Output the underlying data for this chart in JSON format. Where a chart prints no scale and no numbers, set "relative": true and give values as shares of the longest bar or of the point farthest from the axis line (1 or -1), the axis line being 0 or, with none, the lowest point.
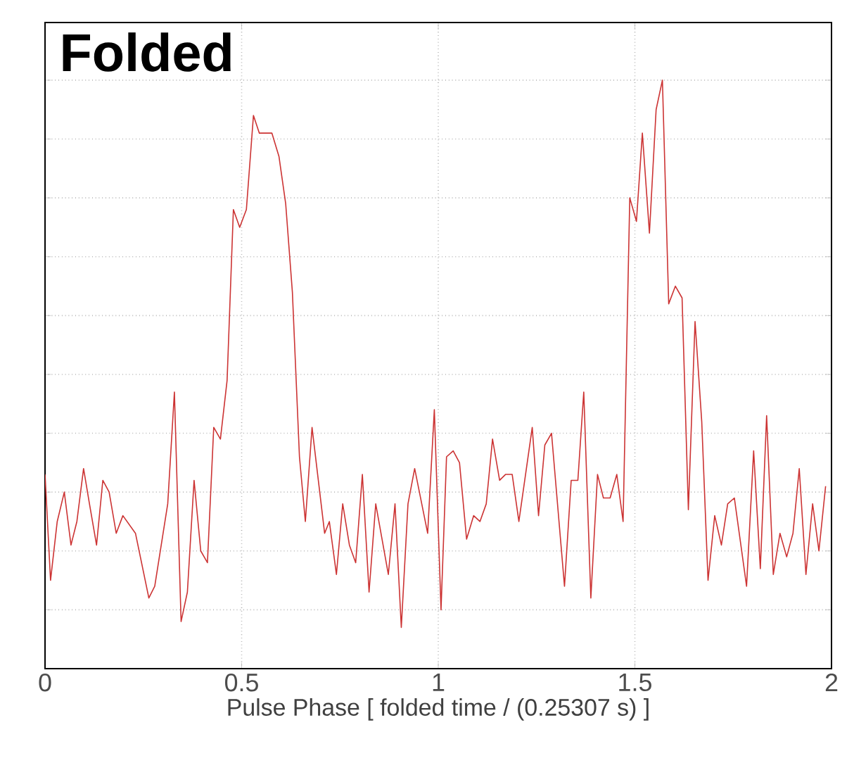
{
  "chart_data": {
    "type": "line",
    "title": "Folded",
    "xlabel": "Pulse Phase [  folded time / (0.25307 s) ]",
    "relative": true,
    "xlim": [
      0,
      2
    ],
    "xticks": [
      0,
      0.5,
      1,
      1.5,
      2
    ],
    "tick_labels": "x",
    "grid": true,
    "legend": false,
    "marker": "none",
    "line_style": "solid",
    "series": [
      {
        "color": "#cc3333",
        "x": [
          0,
          0.014,
          0.031,
          0.049,
          0.066,
          0.081,
          0.098,
          0.113,
          0.131,
          0.147,
          0.163,
          0.181,
          0.198,
          0.23,
          0.264,
          0.279,
          0.312,
          0.329,
          0.346,
          0.362,
          0.379,
          0.396,
          0.413,
          0.429,
          0.446,
          0.463,
          0.479,
          0.495,
          0.512,
          0.53,
          0.545,
          0.577,
          0.595,
          0.612,
          0.629,
          0.647,
          0.662,
          0.679,
          0.695,
          0.711,
          0.723,
          0.741,
          0.757,
          0.774,
          0.79,
          0.807,
          0.824,
          0.841,
          0.873,
          0.89,
          0.906,
          0.923,
          0.94,
          0.973,
          0.99,
          1.007,
          1.021,
          1.038,
          1.054,
          1.072,
          1.09,
          1.106,
          1.122,
          1.138,
          1.156,
          1.171,
          1.188,
          1.205,
          1.239,
          1.255,
          1.271,
          1.288,
          1.321,
          1.338,
          1.355,
          1.37,
          1.388,
          1.405,
          1.42,
          1.437,
          1.454,
          1.47,
          1.487,
          1.504,
          1.519,
          1.537,
          1.554,
          1.57,
          1.586,
          1.603,
          1.62,
          1.636,
          1.653,
          1.67,
          1.686,
          1.703,
          1.72,
          1.736,
          1.753,
          1.784,
          1.802,
          1.819,
          1.835,
          1.852,
          1.869,
          1.886,
          1.902,
          1.918,
          1.935,
          1.952,
          1.968,
          1.985
        ],
        "values": [
          0.33,
          0.15,
          0.25,
          0.3,
          0.21,
          0.25,
          0.34,
          0.28,
          0.21,
          0.32,
          0.3,
          0.23,
          0.26,
          0.23,
          0.12,
          0.14,
          0.28,
          0.47,
          0.08,
          0.13,
          0.32,
          0.2,
          0.18,
          0.41,
          0.39,
          0.49,
          0.78,
          0.75,
          0.78,
          0.94,
          0.91,
          0.91,
          0.87,
          0.79,
          0.64,
          0.36,
          0.25,
          0.41,
          0.32,
          0.23,
          0.25,
          0.16,
          0.28,
          0.21,
          0.18,
          0.33,
          0.13,
          0.28,
          0.16,
          0.28,
          0.07,
          0.28,
          0.34,
          0.23,
          0.44,
          0.1,
          0.36,
          0.37,
          0.35,
          0.22,
          0.26,
          0.25,
          0.28,
          0.39,
          0.32,
          0.33,
          0.33,
          0.25,
          0.41,
          0.26,
          0.38,
          0.4,
          0.14,
          0.32,
          0.32,
          0.47,
          0.12,
          0.33,
          0.29,
          0.29,
          0.33,
          0.25,
          0.8,
          0.76,
          0.91,
          0.74,
          0.95,
          1.0,
          0.62,
          0.65,
          0.63,
          0.27,
          0.59,
          0.42,
          0.15,
          0.26,
          0.21,
          0.28,
          0.29,
          0.14,
          0.37,
          0.17,
          0.43,
          0.16,
          0.23,
          0.19,
          0.23,
          0.34,
          0.16,
          0.28,
          0.2,
          0.31
        ]
      }
    ]
  }
}
